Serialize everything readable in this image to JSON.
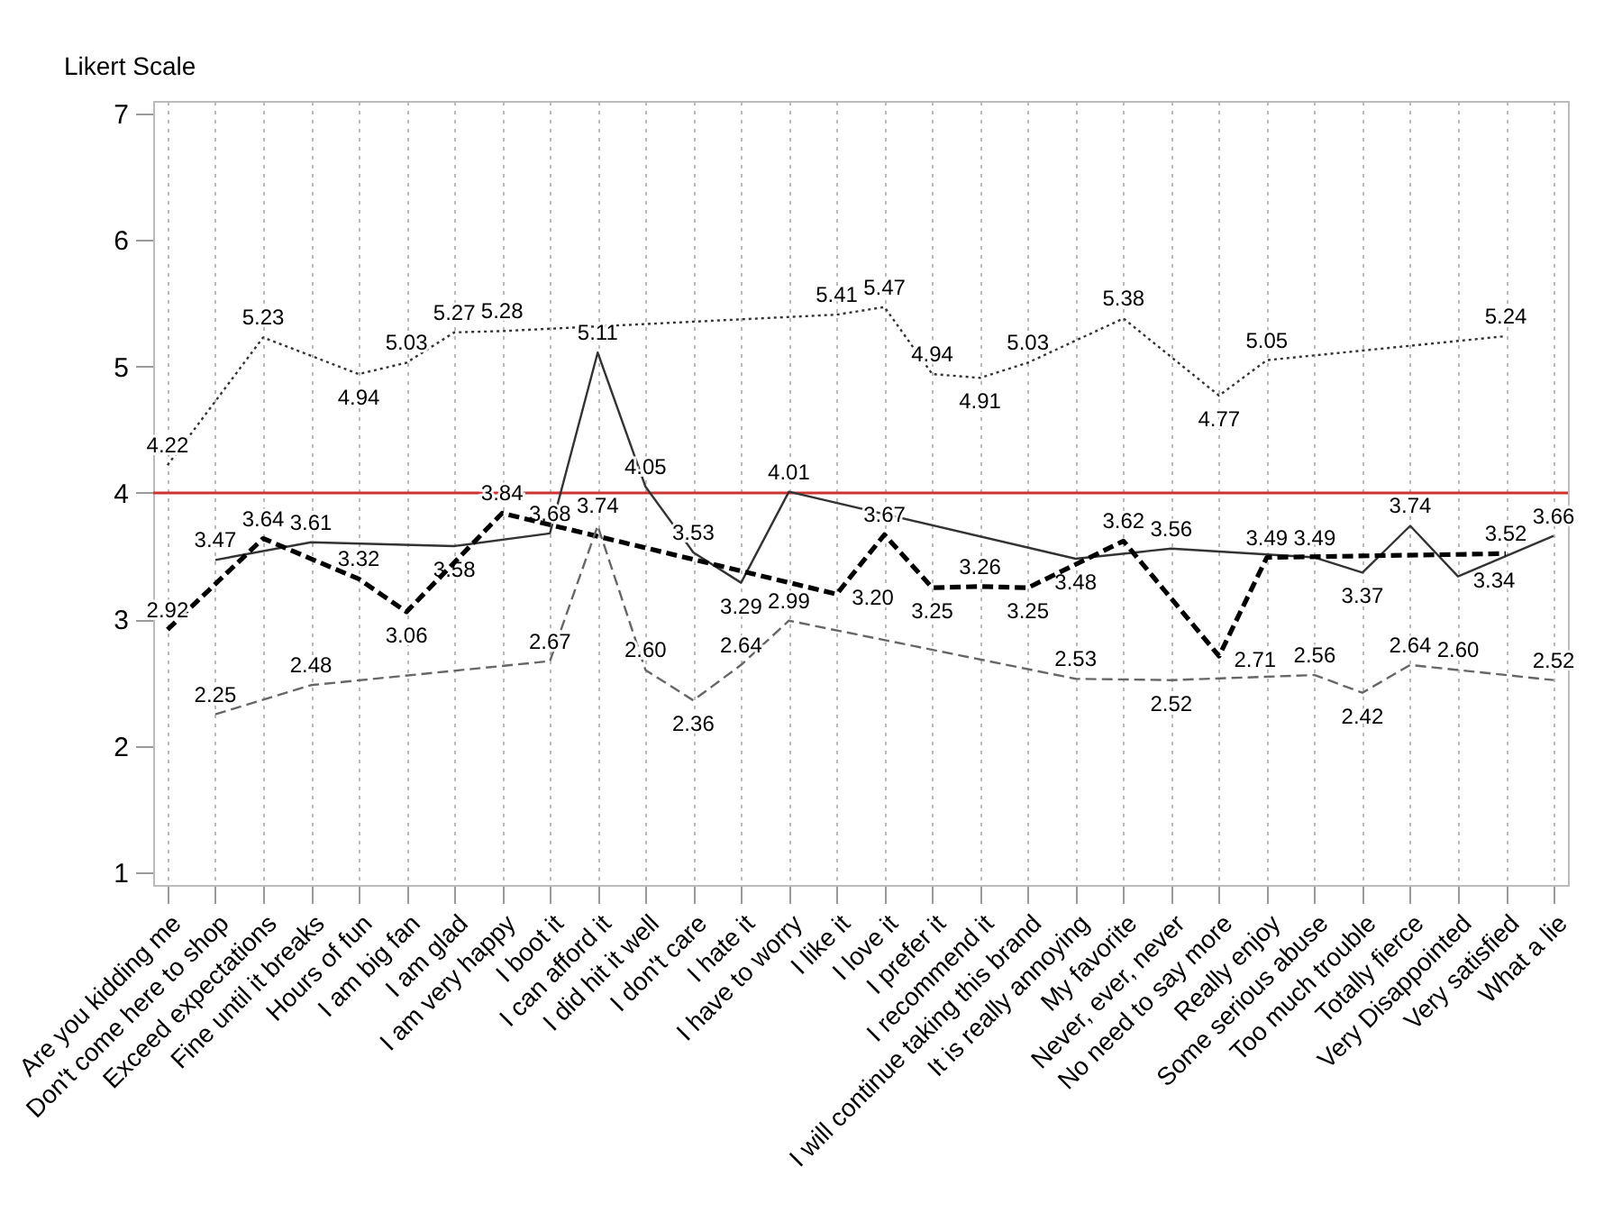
{
  "chart_data": {
    "type": "line",
    "ylabel": "Likert Scale",
    "categories": [
      "Are you kidding me",
      "Don't come here to shop",
      "Exceed expectations",
      "Fine until it breaks",
      "Hours of fun",
      "I am big fan",
      "I am glad",
      "I am very happy",
      "I boot it",
      "I can afford it",
      "I did hit it well",
      "I don't care",
      "I hate it",
      "I have to worry",
      "I like it",
      "I love it",
      "I prefer it",
      "I recommend it",
      "I will continue taking this brand",
      "It is really annoying",
      "My favorite",
      "Never, ever, never",
      "No need to say more",
      "Really enjoy",
      "Some serious abuse",
      "Too much trouble",
      "Totally fierce",
      "Very Disappointed",
      "Very satisfied",
      "What a lie"
    ],
    "series": [
      {
        "color": "#333333",
        "line_style": "dotted",
        "values": [
          4.22,
          null,
          5.23,
          null,
          4.94,
          5.03,
          5.27,
          5.28,
          null,
          null,
          null,
          null,
          null,
          null,
          5.41,
          5.47,
          4.94,
          4.91,
          5.03,
          null,
          5.38,
          null,
          4.77,
          5.05,
          null,
          null,
          null,
          null,
          5.24,
          null
        ],
        "value_labels": [
          "4.22",
          null,
          "5.23",
          null,
          "4.94",
          "5.03",
          "5.27",
          "5.28",
          null,
          null,
          null,
          null,
          null,
          null,
          "5.41",
          "5.47",
          "4.94",
          "4.91",
          "5.03",
          null,
          "5.38",
          null,
          "4.77",
          "5.05",
          null,
          null,
          null,
          null,
          "5.24",
          null
        ]
      },
      {
        "color": "#333333",
        "line_style": "solid",
        "values": [
          null,
          3.47,
          null,
          3.61,
          null,
          null,
          3.58,
          null,
          3.68,
          5.11,
          4.05,
          3.53,
          3.29,
          4.01,
          null,
          null,
          null,
          null,
          null,
          3.48,
          null,
          3.56,
          null,
          null,
          3.49,
          3.37,
          3.74,
          3.34,
          null,
          3.66
        ],
        "value_labels": [
          null,
          "3.47",
          null,
          "3.61",
          null,
          null,
          "3.58",
          null,
          "3.68",
          "5.11",
          "4.05",
          "3.53",
          "3.29",
          "4.01",
          null,
          null,
          null,
          null,
          null,
          "3.48",
          null,
          "3.56",
          null,
          null,
          "3.49",
          "3.37",
          "3.74",
          "3.34",
          null,
          "3.66"
        ]
      },
      {
        "color": "#000000",
        "line_style": "dashed",
        "values": [
          2.92,
          null,
          3.64,
          null,
          3.32,
          3.06,
          null,
          3.84,
          null,
          null,
          null,
          null,
          null,
          null,
          3.2,
          3.67,
          3.25,
          3.26,
          3.25,
          null,
          3.62,
          null,
          2.71,
          3.49,
          null,
          null,
          null,
          null,
          3.52,
          null
        ],
        "value_labels": [
          "2.92",
          null,
          "3.64",
          null,
          "3.32",
          "3.06",
          null,
          "3.84",
          null,
          null,
          null,
          null,
          null,
          null,
          "3.20",
          "3.67",
          "3.25",
          "3.26",
          "3.25",
          null,
          "3.62",
          null,
          "2.71",
          "3.49",
          null,
          null,
          null,
          null,
          "3.52",
          null
        ]
      },
      {
        "color": "#666666",
        "line_style": "dashed",
        "values": [
          null,
          2.25,
          null,
          2.48,
          null,
          null,
          null,
          null,
          2.67,
          3.74,
          2.6,
          2.36,
          2.64,
          2.99,
          null,
          null,
          null,
          null,
          null,
          2.53,
          null,
          2.52,
          null,
          null,
          2.56,
          2.42,
          2.64,
          2.6,
          null,
          2.52
        ],
        "value_labels": [
          null,
          "2.25",
          null,
          "2.48",
          null,
          null,
          null,
          null,
          "2.67",
          "3.74",
          "2.60",
          "2.36",
          "2.64",
          "2.99",
          null,
          null,
          null,
          null,
          null,
          "2.53",
          null,
          "2.52",
          null,
          null,
          "2.56",
          "2.42",
          "2.64",
          "2.60",
          null,
          "2.52"
        ]
      }
    ],
    "ylim": [
      0.9,
      7.1
    ],
    "yticks": [
      1,
      2,
      3,
      4,
      5,
      6,
      7
    ],
    "grid": "x",
    "ref_lines": [
      {
        "axis": "y",
        "value": 4,
        "color": "#cc3333"
      }
    ]
  }
}
